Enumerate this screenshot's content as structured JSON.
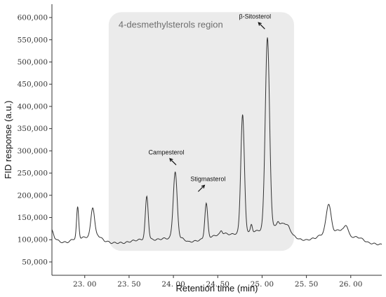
{
  "chart_data": {
    "type": "line",
    "title": "",
    "xlabel": "Retention time (min)",
    "ylabel": "FID response (a.u.)",
    "xlim": [
      22.63,
      26.35
    ],
    "ylim": [
      20000,
      630000
    ],
    "x_ticks": [
      {
        "value": 23.0,
        "label": "23. 00"
      },
      {
        "value": 23.5,
        "label": "23. 50"
      },
      {
        "value": 24.0,
        "label": "24. 00"
      },
      {
        "value": 24.5,
        "label": "24. 50"
      },
      {
        "value": 25.0,
        "label": "25. 00"
      },
      {
        "value": 25.5,
        "label": "25. 50"
      },
      {
        "value": 26.0,
        "label": "26. 00"
      }
    ],
    "y_ticks": [
      {
        "value": 50000,
        "label": "50,000"
      },
      {
        "value": 100000,
        "label": "100,000"
      },
      {
        "value": 150000,
        "label": "150,000"
      },
      {
        "value": 200000,
        "label": "200,000"
      },
      {
        "value": 250000,
        "label": "250,000"
      },
      {
        "value": 300000,
        "label": "300,000"
      },
      {
        "value": 350000,
        "label": "350,000"
      },
      {
        "value": 400000,
        "label": "400,000"
      },
      {
        "value": 450000,
        "label": "450,000"
      },
      {
        "value": 500000,
        "label": "500,000"
      },
      {
        "value": 550000,
        "label": "550,000"
      },
      {
        "value": 600000,
        "label": "600,000"
      }
    ],
    "grid": false,
    "line_color": "#333333",
    "region": {
      "label": "4-desmethylsterols region",
      "x_start": 23.27,
      "x_end": 25.36,
      "y_bottom": 75000,
      "y_top": 612000,
      "color": "#ebebeb"
    },
    "annotations": [
      {
        "label": "Campesterol",
        "peak_x": 24.01,
        "peak_y": 251000,
        "label_x": 23.92,
        "label_y": 292000
      },
      {
        "label": "Stigmasterol",
        "peak_x": 24.37,
        "peak_y": 189000,
        "label_x": 24.39,
        "label_y": 232000
      },
      {
        "label": "β-Sitosterol",
        "peak_x": 25.04,
        "peak_y": 551000,
        "label_x": 24.92,
        "label_y": 598000
      }
    ],
    "baseline": [
      [
        22.63,
        122000
      ],
      [
        22.66,
        105000
      ],
      [
        22.72,
        95000
      ],
      [
        22.8,
        94000
      ],
      [
        22.88,
        102000
      ],
      [
        23.15,
        110000
      ],
      [
        23.22,
        98000
      ],
      [
        23.3,
        93000
      ],
      [
        23.45,
        93000
      ],
      [
        23.55,
        98000
      ],
      [
        23.68,
        102000
      ],
      [
        23.8,
        100000
      ],
      [
        23.9,
        103000
      ],
      [
        24.1,
        103000
      ],
      [
        24.17,
        95000
      ],
      [
        24.25,
        97000
      ],
      [
        24.45,
        108000
      ],
      [
        24.55,
        115000
      ],
      [
        24.65,
        112000
      ],
      [
        24.8,
        117000
      ],
      [
        24.95,
        120000
      ],
      [
        25.15,
        130000
      ],
      [
        25.25,
        138000
      ],
      [
        25.3,
        130000
      ],
      [
        25.35,
        110000
      ],
      [
        25.42,
        101000
      ],
      [
        25.5,
        99000
      ],
      [
        25.6,
        104000
      ],
      [
        25.7,
        115000
      ],
      [
        25.9,
        123000
      ],
      [
        26.0,
        107000
      ],
      [
        26.1,
        105000
      ],
      [
        26.2,
        93000
      ],
      [
        26.3,
        90000
      ],
      [
        26.35,
        89000
      ]
    ],
    "peaks": [
      {
        "x": 22.92,
        "height": 70000,
        "width": 0.012
      },
      {
        "x": 23.09,
        "height": 65000,
        "width": 0.02
      },
      {
        "x": 23.7,
        "height": 96000,
        "width": 0.016
      },
      {
        "x": 24.02,
        "height": 149000,
        "width": 0.022
      },
      {
        "x": 24.37,
        "height": 78000,
        "width": 0.016
      },
      {
        "x": 24.54,
        "height": 6000,
        "width": 0.01
      },
      {
        "x": 24.78,
        "height": 266000,
        "width": 0.02
      },
      {
        "x": 24.88,
        "height": 15000,
        "width": 0.01
      },
      {
        "x": 25.06,
        "height": 430000,
        "width": 0.024
      },
      {
        "x": 25.18,
        "height": 10000,
        "width": 0.012
      },
      {
        "x": 25.75,
        "height": 64000,
        "width": 0.026
      },
      {
        "x": 25.95,
        "height": 18000,
        "width": 0.02
      }
    ]
  }
}
